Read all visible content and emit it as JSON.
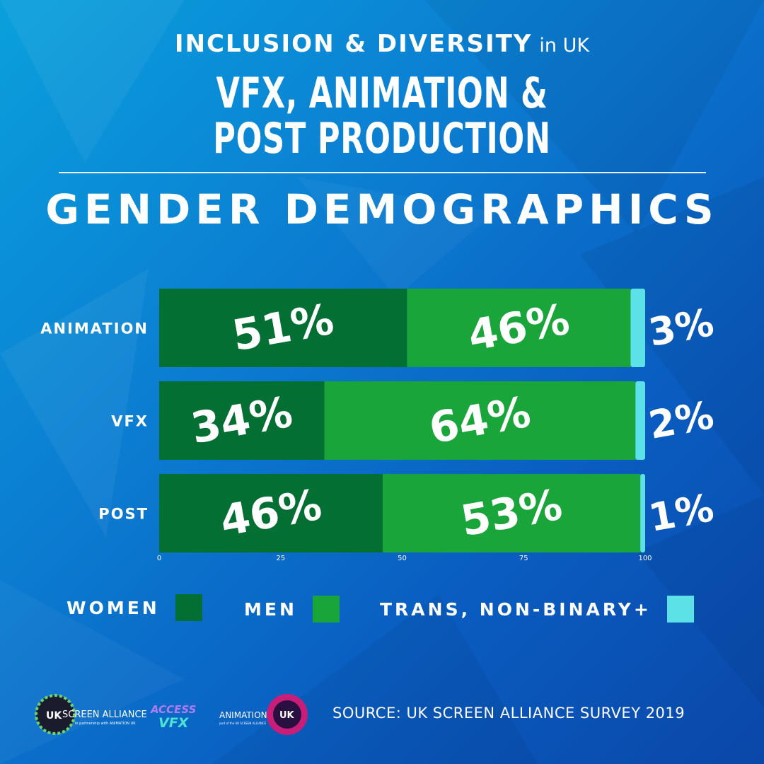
{
  "header": {
    "line1_big": "INCLUSION & DIVERSITY",
    "line1_small": "in UK",
    "line2a": "VFX, ANIMATION &",
    "line2b": "POST PRODUCTION",
    "subtitle": "GENDER DEMOGRAPHICS"
  },
  "chart_data": {
    "type": "bar",
    "orientation": "horizontal",
    "stacked": true,
    "categories": [
      "ANIMATION",
      "VFX",
      "POST"
    ],
    "series": [
      {
        "name": "WOMEN",
        "values": [
          51,
          34,
          46
        ],
        "labels": [
          "51%",
          "34%",
          "46%"
        ],
        "color": "#046f33"
      },
      {
        "name": "MEN",
        "values": [
          46,
          64,
          53
        ],
        "labels": [
          "46%",
          "64%",
          "53%"
        ],
        "color": "#1aa53a"
      },
      {
        "name": "TRANS, NON-BINARY+",
        "values": [
          3,
          2,
          1
        ],
        "labels": [
          "3%",
          "2%",
          "1%"
        ],
        "color": "#5ce1e6"
      }
    ],
    "xlim": [
      0,
      100
    ],
    "xticks": [
      "0",
      "25",
      "50",
      "75",
      "100"
    ],
    "legend_position": "bottom"
  },
  "source": "SOURCE: UK SCREEN ALLIANCE SURVEY 2019",
  "logos": {
    "uk_screen_alliance_a": "UK",
    "uk_screen_alliance_b": "SCREEN ALLIANCE",
    "uk_screen_alliance_sub": "in partnership with ANIMATION UK",
    "access_vfx_a": "ACCESS",
    "access_vfx_b": "VFX",
    "animation_uk_a": "ANIMATION",
    "animation_uk_b": "UK",
    "animation_uk_sub": "part of the UK SCREEN ALLIANCE"
  },
  "colors": {
    "accent": "#5ce1e6"
  }
}
